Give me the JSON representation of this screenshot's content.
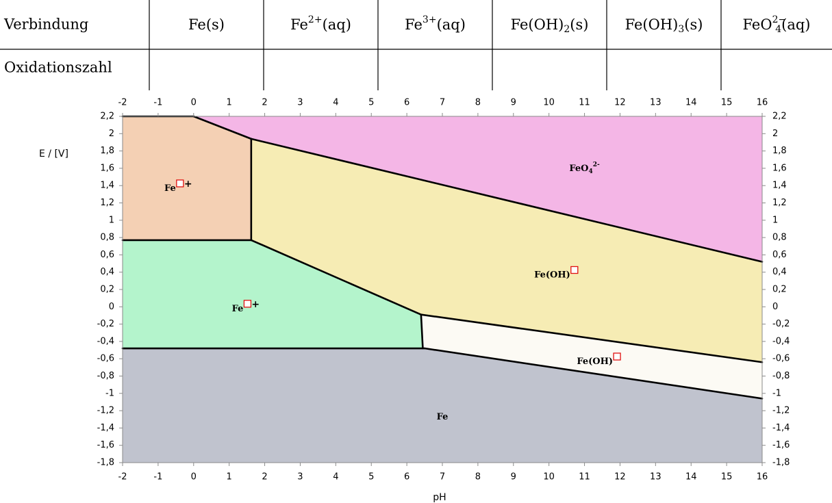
{
  "table": {
    "row_header_1": "Verbindung",
    "row_header_2": "Oxidationszahl",
    "compounds": [
      {
        "base": "Fe(s)"
      },
      {
        "base": "Fe",
        "sup": "2+",
        "tail": "(aq)"
      },
      {
        "base": "Fe",
        "sup": "3+",
        "tail": "(aq)"
      },
      {
        "base": "Fe(OH)",
        "sub": "2",
        "tail": "(s)"
      },
      {
        "base": "Fe(OH)",
        "sub": "3",
        "tail": "(s)"
      },
      {
        "base": "FeO",
        "subsup": {
          "sub": "4",
          "sup": "2−"
        },
        "tail": "(aq)"
      }
    ],
    "oxidation_numbers": [
      "",
      "",
      "",
      "",
      "",
      ""
    ]
  },
  "chart_data": {
    "type": "area",
    "title": "",
    "xlabel": "pH",
    "ylabel": "E / [V]",
    "xlim": [
      -2,
      16
    ],
    "ylim": [
      -1.8,
      2.2
    ],
    "x_ticks": [
      -2,
      -1,
      0,
      1,
      2,
      3,
      4,
      5,
      6,
      7,
      8,
      9,
      10,
      11,
      12,
      13,
      14,
      15,
      16
    ],
    "y_tick_values": [
      2.2,
      2.0,
      1.8,
      1.6,
      1.4,
      1.2,
      1.0,
      0.8,
      0.6,
      0.4,
      0.2,
      0,
      -0.2,
      -0.4,
      -0.6,
      -0.8,
      -1.0,
      -1.2,
      -1.4,
      -1.6,
      -1.8
    ],
    "y_tick_labels": [
      "2,2",
      "2",
      "1,8",
      "1,6",
      "1,4",
      "1,2",
      "1",
      "0,8",
      "0,6",
      "0,4",
      "0,2",
      "0",
      "-0,2",
      "-0,4",
      "-0,6",
      "-0,8",
      "-1",
      "-1,2",
      "-1,4",
      "-1,6",
      "-1,8"
    ],
    "regions": [
      {
        "id": "fe",
        "color": "#c0c3ce",
        "label": {
          "text": "Fe",
          "x": 7.0,
          "y": -1.27,
          "box": false
        },
        "polygon": [
          [
            -2,
            -0.48
          ],
          [
            6.5,
            -0.48
          ],
          [
            16,
            -1.06
          ],
          [
            16,
            -1.8
          ],
          [
            -2,
            -1.8
          ]
        ]
      },
      {
        "id": "fe2",
        "color": "#b4f4cc",
        "label": {
          "text": "Fe",
          "x": 1.4,
          "y": -0.02,
          "box": true,
          "suffix": "+"
        },
        "polygon": [
          [
            -2,
            0.77
          ],
          [
            1.62,
            0.77
          ],
          [
            6.4,
            -0.09
          ],
          [
            6.45,
            -0.48
          ],
          [
            -2,
            -0.48
          ]
        ]
      },
      {
        "id": "fe3",
        "color": "#f4d0b4",
        "label": {
          "text": "Fe",
          "x": -0.5,
          "y": 1.37,
          "box": true,
          "suffix": "+"
        },
        "polygon": [
          [
            -2,
            2.2
          ],
          [
            0,
            2.2
          ],
          [
            1.62,
            1.94
          ],
          [
            1.62,
            0.77
          ],
          [
            -2,
            0.77
          ]
        ]
      },
      {
        "id": "feoh3",
        "color": "#f6ecb4",
        "label": {
          "text": "Fe(OH)",
          "x": 10.6,
          "y": 0.37,
          "box": true
        },
        "polygon": [
          [
            1.62,
            1.94
          ],
          [
            16,
            0.52
          ],
          [
            16,
            -0.64
          ],
          [
            6.4,
            -0.09
          ],
          [
            1.62,
            0.77
          ]
        ]
      },
      {
        "id": "feoh2",
        "color": "#fcfaf4",
        "label": {
          "text": "Fe(OH)",
          "x": 11.8,
          "y": -0.63,
          "box": true
        },
        "polygon": [
          [
            6.4,
            -0.09
          ],
          [
            16,
            -0.64
          ],
          [
            16,
            -1.06
          ],
          [
            6.5,
            -0.48
          ]
        ]
      },
      {
        "id": "feo4",
        "color": "#f4b6e6",
        "label": {
          "text": "FeO",
          "x": 11.0,
          "y": 1.6,
          "box": false,
          "sub": "4",
          "sup": "2-"
        },
        "polygon": [
          [
            0,
            2.2
          ],
          [
            16,
            2.2
          ],
          [
            16,
            0.52
          ],
          [
            1.62,
            1.94
          ]
        ]
      }
    ],
    "boundaries": [
      [
        [
          -2,
          2.2
        ],
        [
          0,
          2.2
        ]
      ],
      [
        [
          0,
          2.2
        ],
        [
          1.62,
          1.94
        ]
      ],
      [
        [
          1.62,
          1.94
        ],
        [
          16,
          0.52
        ]
      ],
      [
        [
          1.62,
          1.94
        ],
        [
          1.62,
          0.77
        ]
      ],
      [
        [
          -2,
          0.77
        ],
        [
          1.62,
          0.77
        ]
      ],
      [
        [
          1.62,
          0.77
        ],
        [
          6.4,
          -0.09
        ]
      ],
      [
        [
          6.4,
          -0.09
        ],
        [
          16,
          -0.64
        ]
      ],
      [
        [
          6.4,
          -0.09
        ],
        [
          6.45,
          -0.48
        ]
      ],
      [
        [
          -2,
          -0.48
        ],
        [
          6.5,
          -0.48
        ]
      ],
      [
        [
          6.5,
          -0.48
        ],
        [
          16,
          -1.06
        ]
      ]
    ]
  }
}
